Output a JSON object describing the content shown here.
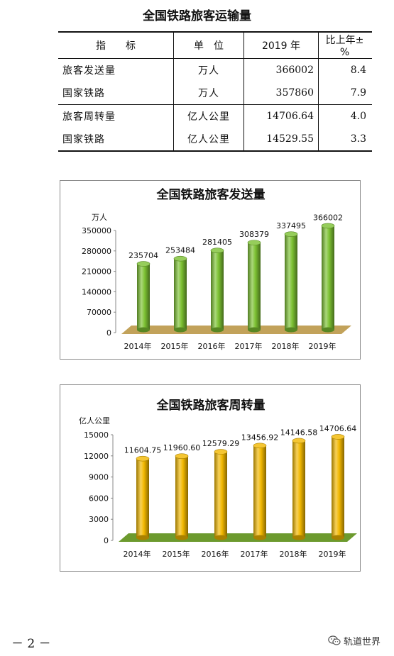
{
  "title": "全国铁路旅客运输量",
  "table": {
    "headers": [
      "指　　标",
      "单　位",
      "2019 年",
      "比上年±%"
    ],
    "rows": [
      {
        "indicator": "旅客发送量",
        "unit": "万人",
        "value": "366002",
        "change": "8.4",
        "indent": false
      },
      {
        "indicator": "国家铁路",
        "unit": "万人",
        "value": "357860",
        "change": "7.9",
        "indent": true
      },
      {
        "indicator": "旅客周转量",
        "unit": "亿人公里",
        "value": "14706.64",
        "change": "4.0",
        "indent": false
      },
      {
        "indicator": "国家铁路",
        "unit": "亿人公里",
        "value": "14529.55",
        "change": "3.3",
        "indent": true
      }
    ]
  },
  "chart_data": [
    {
      "type": "bar",
      "title": "全国铁路旅客发送量",
      "ylabel": "万人",
      "categories": [
        "2014年",
        "2015年",
        "2016年",
        "2017年",
        "2018年",
        "2019年"
      ],
      "values": [
        235704,
        253484,
        281405,
        308379,
        337495,
        366002
      ],
      "value_labels": [
        "235704",
        "253484",
        "281405",
        "308379",
        "337495",
        "366002"
      ],
      "ylim": [
        0,
        350000
      ],
      "yticks": [
        0,
        70000,
        140000,
        210000,
        280000,
        350000
      ],
      "bar_color": "#7cc132",
      "floor_color": "#c2a25a",
      "grid": false,
      "legend": "none"
    },
    {
      "type": "bar",
      "title": "全国铁路旅客周转量",
      "ylabel": "亿人公里",
      "categories": [
        "2014年",
        "2015年",
        "2016年",
        "2017年",
        "2018年",
        "2019年"
      ],
      "values": [
        11604.75,
        11960.6,
        12579.29,
        13456.92,
        14146.58,
        14706.64
      ],
      "value_labels": [
        "11604.75",
        "11960.60",
        "12579.29",
        "13456.92",
        "14146.58",
        "14706.64"
      ],
      "ylim": [
        0,
        15000
      ],
      "yticks": [
        0,
        3000,
        6000,
        9000,
        12000,
        15000
      ],
      "bar_color": "#f2b800",
      "floor_color": "#6c9a2e",
      "grid": false,
      "legend": "none"
    }
  ],
  "footer": {
    "page_number": "－ 2 －",
    "watermark": "轨道世界",
    "watermark_icon": "wechat-icon"
  }
}
